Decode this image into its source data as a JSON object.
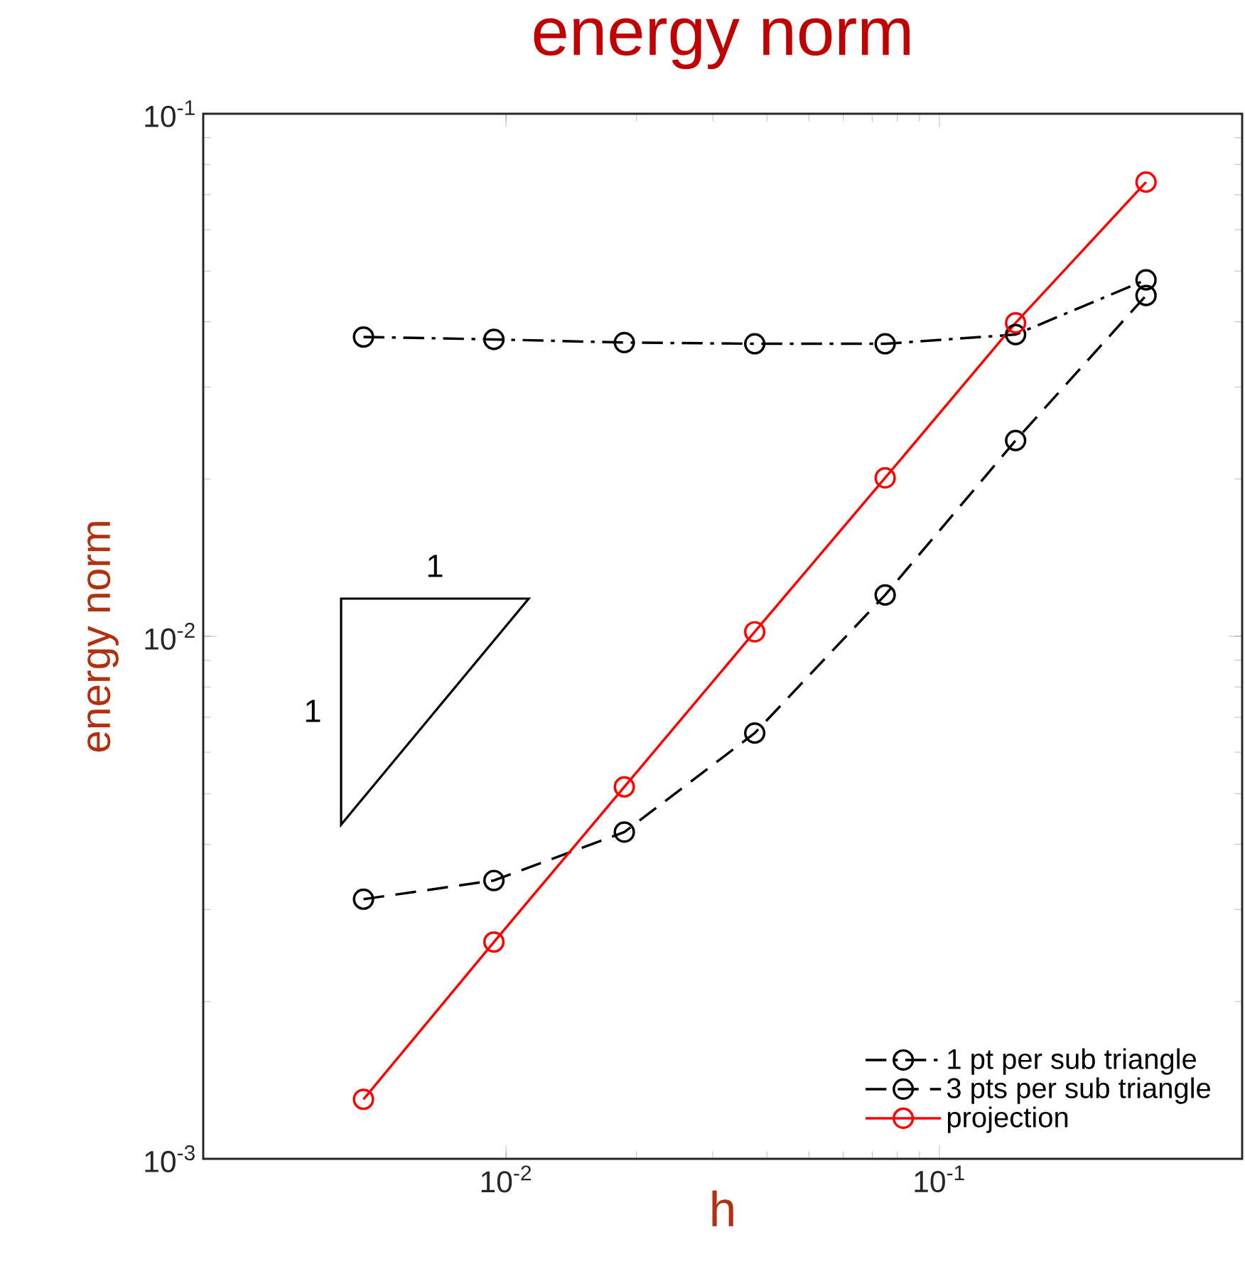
{
  "chart_data": {
    "type": "line",
    "title": "energy norm",
    "xlabel": "h",
    "ylabel": "energy norm",
    "log": "xy",
    "x": [
      0.0046875,
      0.009375,
      0.01875,
      0.0375,
      0.075,
      0.15,
      0.3
    ],
    "xlim": [
      0.002,
      0.5
    ],
    "ylim": [
      0.001,
      0.1
    ],
    "xticks": [
      {
        "value": 0.01,
        "label": "10$^{-2}$"
      },
      {
        "value": 0.1,
        "label": "10$^{-1}$"
      }
    ],
    "yticks": [
      {
        "value": 0.001,
        "label": "10$^{-3}$"
      },
      {
        "value": 0.01,
        "label": "10$^{-2}$"
      },
      {
        "value": 0.1,
        "label": "10$^{-1}$"
      }
    ],
    "marker": "circle",
    "legend": "bottom right",
    "series": [
      {
        "name": "1 pt per sub triangle",
        "color": "#000000",
        "line_style": "dashdot",
        "values": [
          0.0374,
          0.037,
          0.0365,
          0.0363,
          0.0363,
          0.0378,
          0.0481
        ]
      },
      {
        "name": "3 pts per sub triangle",
        "color": "#000000",
        "line_style": "dashed",
        "values": [
          0.00314,
          0.00341,
          0.00422,
          0.00653,
          0.012,
          0.0237,
          0.0449
        ]
      },
      {
        "name": "projection",
        "color": "#ff0000",
        "line_style": "solid",
        "values": [
          0.0013,
          0.0026,
          0.00515,
          0.0102,
          0.0201,
          0.0398,
          0.074
        ]
      }
    ],
    "annotations": [
      "1",
      "1"
    ]
  }
}
